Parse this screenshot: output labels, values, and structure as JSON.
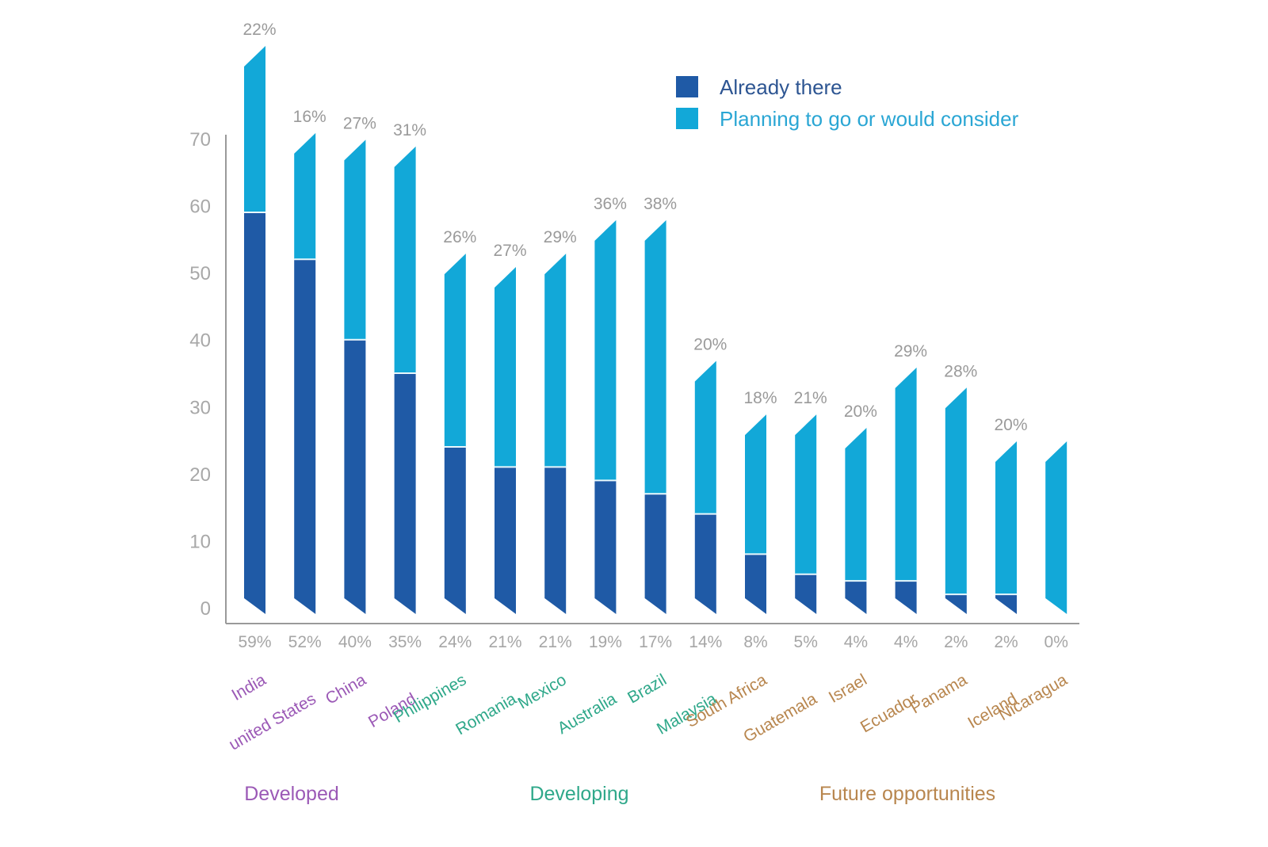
{
  "chart_data": {
    "type": "bar",
    "stacked": true,
    "title": "",
    "xlabel": "",
    "ylabel": "",
    "ylim": [
      0,
      70
    ],
    "yticks": [
      0,
      10,
      20,
      30,
      40,
      50,
      60,
      70
    ],
    "grid": false,
    "legend_position": "top-right",
    "categories": [
      "India",
      "united States",
      "China",
      "Poland",
      "Philippines",
      "Romania",
      "Mexico",
      "Australia",
      "Brazil",
      "Malaysia",
      "South Africa",
      "Guatemala",
      "Israel",
      "Ecuador",
      "Panama",
      "Iceland",
      "Nicaragua"
    ],
    "category_groups": [
      "Developed",
      "Developed",
      "Developed",
      "Developed",
      "Developing",
      "Developing",
      "Developing",
      "Developing",
      "Developing",
      "Developing",
      "Future opportunities",
      "Future opportunities",
      "Future opportunities",
      "Future opportunities",
      "Future opportunities",
      "Future opportunities",
      "Future opportunities"
    ],
    "series": [
      {
        "name": "Already there",
        "color": "#1f5aa6",
        "values": [
          59,
          52,
          40,
          35,
          24,
          21,
          21,
          19,
          17,
          14,
          8,
          5,
          4,
          4,
          2,
          2,
          0
        ]
      },
      {
        "name": "Planning to go or would consider",
        "color": "#12a8d8",
        "values": [
          22,
          16,
          27,
          31,
          26,
          27,
          29,
          36,
          38,
          20,
          18,
          21,
          20,
          29,
          28,
          20,
          22
        ]
      }
    ],
    "top_labels": [
      "22%",
      "16%",
      "27%",
      "31%",
      "26%",
      "27%",
      "29%",
      "36%",
      "38%",
      "20%",
      "18%",
      "21%",
      "20%",
      "29%",
      "28%",
      "20%",
      ""
    ],
    "bottom_labels": [
      "59%",
      "52%",
      "40%",
      "35%",
      "24%",
      "21%",
      "21%",
      "19%",
      "17%",
      "14%",
      "8%",
      "5%",
      "4%",
      "4%",
      "2%",
      "2%",
      "0%"
    ],
    "groups": [
      {
        "name": "Developed",
        "color": "#9b59b6"
      },
      {
        "name": "Developing",
        "color": "#2fa88a"
      },
      {
        "name": "Future opportunities",
        "color": "#b8864e"
      }
    ],
    "legend": [
      {
        "label": "Already there",
        "color": "#1f5aa6",
        "text_color": "#2d5592"
      },
      {
        "label": "Planning to go or would consider",
        "color": "#12a8d8",
        "text_color": "#2aa6d4"
      }
    ],
    "top_label_faded_index": 14
  }
}
